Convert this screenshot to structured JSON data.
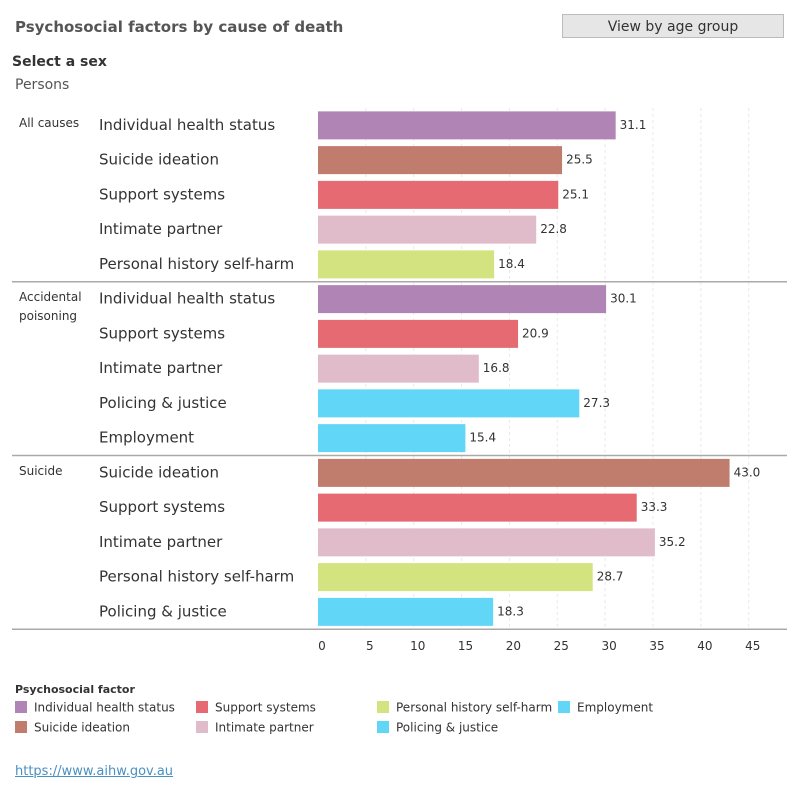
{
  "chart_data": {
    "type": "bar",
    "orientation": "horizontal",
    "title": "Psychosocial factors by cause of death",
    "button": "View by age group",
    "filter_label": "Select a sex",
    "filter_value": "Persons",
    "legend_title": "Psychosocial factor",
    "legend": [
      {
        "name": "Individual health status",
        "color": "#b084b5"
      },
      {
        "name": "Suicide ideation",
        "color": "#c07c6c"
      },
      {
        "name": "Support systems",
        "color": "#e56a72"
      },
      {
        "name": "Intimate partner",
        "color": "#e0bccb"
      },
      {
        "name": "Personal history self-harm",
        "color": "#d3e37f"
      },
      {
        "name": "Policing & justice",
        "color": "#62d6f7"
      },
      {
        "name": "Employment",
        "color": "#62d6f7"
      }
    ],
    "groups": [
      {
        "name": "All causes",
        "categories": [
          "Individual health status",
          "Suicide ideation",
          "Support systems",
          "Intimate partner",
          "Personal history self-harm"
        ],
        "values": [
          31.1,
          25.5,
          25.1,
          22.8,
          18.4
        ],
        "value_labels": [
          "31.1",
          "25.5",
          "25.1",
          "22.8",
          "18.4"
        ]
      },
      {
        "name": "Accidental poisoning",
        "categories": [
          "Individual health status",
          "Support systems",
          "Intimate partner",
          "Policing & justice",
          "Employment"
        ],
        "values": [
          30.1,
          20.9,
          16.8,
          27.3,
          15.4
        ],
        "value_labels": [
          "30.1",
          "20.9",
          "16.8",
          "27.3",
          "15.4"
        ]
      },
      {
        "name": "Suicide",
        "categories": [
          "Suicide ideation",
          "Support systems",
          "Intimate partner",
          "Personal history self-harm",
          "Policing & justice"
        ],
        "values": [
          43.0,
          33.3,
          35.2,
          28.7,
          18.3
        ],
        "value_labels": [
          "43.0",
          "33.3",
          "35.2",
          "28.7",
          "18.3"
        ]
      }
    ],
    "xlim": [
      0,
      49
    ],
    "xticks": [
      0,
      5,
      10,
      15,
      20,
      25,
      30,
      35,
      40,
      45
    ],
    "grid": true
  },
  "source_url": "https://www.aihw.gov.au"
}
